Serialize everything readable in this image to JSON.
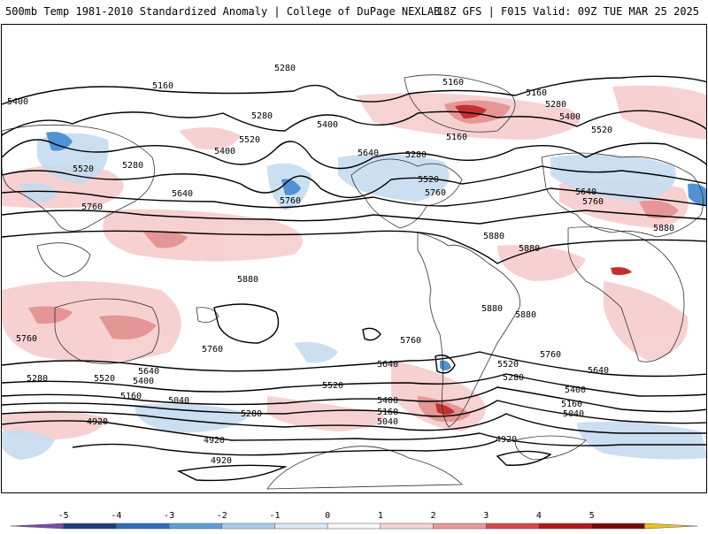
{
  "header": {
    "left_title": "500mb Temp 1981-2010 Standardized Anomaly | College of DuPage NEXLAB",
    "right_title": "18Z GFS | F015 Valid: 09Z TUE MAR 25 2025"
  },
  "contour_labels": [
    {
      "text": "5280"
    },
    {
      "text": "5160"
    },
    {
      "text": "5400"
    },
    {
      "text": "5280"
    },
    {
      "text": "5520"
    },
    {
      "text": "5400"
    },
    {
      "text": "5520"
    },
    {
      "text": "5280"
    },
    {
      "text": "5640"
    },
    {
      "text": "5760"
    },
    {
      "text": "5760"
    },
    {
      "text": "5400"
    },
    {
      "text": "5640"
    },
    {
      "text": "5280"
    },
    {
      "text": "5160"
    },
    {
      "text": "5520"
    },
    {
      "text": "5760"
    },
    {
      "text": "5160"
    },
    {
      "text": "5160"
    },
    {
      "text": "5280"
    },
    {
      "text": "5400"
    },
    {
      "text": "5520"
    },
    {
      "text": "5640"
    },
    {
      "text": "5760"
    },
    {
      "text": "5880"
    },
    {
      "text": "5880"
    },
    {
      "text": "5880"
    },
    {
      "text": "5880"
    },
    {
      "text": "5880"
    },
    {
      "text": "5880"
    },
    {
      "text": "5760"
    },
    {
      "text": "5760"
    },
    {
      "text": "5760"
    },
    {
      "text": "5640"
    },
    {
      "text": "5520"
    },
    {
      "text": "5400"
    },
    {
      "text": "5160"
    },
    {
      "text": "5280"
    },
    {
      "text": "5040"
    },
    {
      "text": "4920"
    },
    {
      "text": "5520"
    },
    {
      "text": "5640"
    },
    {
      "text": "5400"
    },
    {
      "text": "5280"
    },
    {
      "text": "5160"
    },
    {
      "text": "5040"
    },
    {
      "text": "4920"
    },
    {
      "text": "4920"
    },
    {
      "text": "5760"
    },
    {
      "text": "5640"
    },
    {
      "text": "5520"
    },
    {
      "text": "5280"
    },
    {
      "text": "5400"
    },
    {
      "text": "5160"
    },
    {
      "text": "5040"
    },
    {
      "text": "4920"
    }
  ],
  "colorbar": {
    "labels": [
      "-5",
      "-4",
      "-3",
      "-2",
      "-1",
      "0",
      "1",
      "2",
      "3",
      "4",
      "5"
    ],
    "colors": [
      "#7a4aa8",
      "#1f3d7a",
      "#2f6fb8",
      "#5e9fd9",
      "#a9cbe9",
      "#dbe8f5",
      "#f7f7f7",
      "#f5d3d3",
      "#e99a9a",
      "#d64a4a",
      "#b01818",
      "#7a0a0a",
      "#f0c020"
    ]
  }
}
